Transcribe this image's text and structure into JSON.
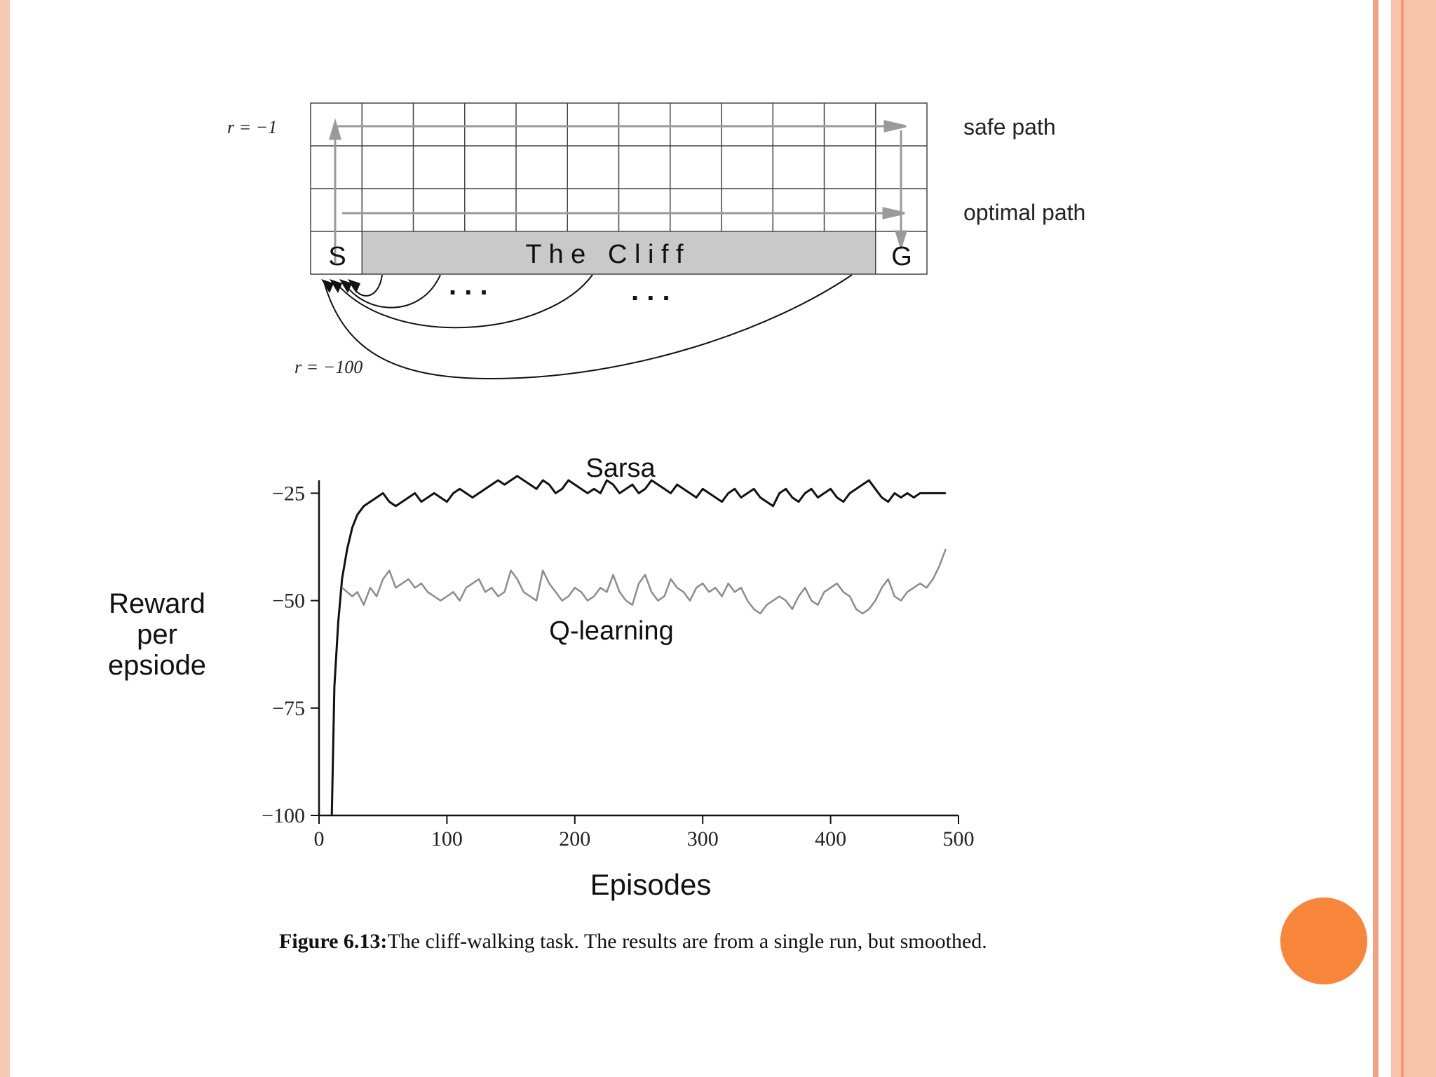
{
  "colors": {
    "accent": "#f7863a",
    "border_light": "#f8c3a8",
    "border_dark": "#f39a74",
    "cliff_fill": "#c9c9c9",
    "sarsa_line": "#111111",
    "qlearning_line": "#8c8c8c"
  },
  "gridworld": {
    "label_r_step": "r = −1",
    "label_r_cliff": "r = −100",
    "start_label": "S",
    "goal_label": "G",
    "cliff_label": "T h e   C l i f f",
    "safe_path_label": "safe path",
    "optimal_path_label": "optimal path",
    "dots_left": ". . .",
    "dots_right": ". . ."
  },
  "chart_data": {
    "type": "line",
    "title": "",
    "xlabel": "Episodes",
    "ylabel": "Reward per epsiode",
    "ylabel_lines": [
      "Reward",
      "per",
      "epsiode"
    ],
    "xlim": [
      0,
      500
    ],
    "ylim": [
      -100,
      -20
    ],
    "xticks": [
      0,
      100,
      200,
      300,
      400,
      500
    ],
    "yticks": [
      -25,
      -50,
      -75,
      -100
    ],
    "xtick_labels": [
      "0",
      "100",
      "200",
      "300",
      "400",
      "500"
    ],
    "ytick_labels": [
      "−25",
      "−50",
      "−75",
      "−100"
    ],
    "grid": false,
    "series": [
      {
        "name": "Sarsa",
        "color": "#111111",
        "x": [
          10,
          12,
          15,
          18,
          22,
          26,
          30,
          35,
          40,
          45,
          50,
          55,
          60,
          65,
          70,
          75,
          80,
          85,
          90,
          95,
          100,
          105,
          110,
          115,
          120,
          125,
          130,
          135,
          140,
          145,
          150,
          155,
          160,
          165,
          170,
          175,
          180,
          185,
          190,
          195,
          200,
          205,
          210,
          215,
          220,
          225,
          230,
          235,
          240,
          245,
          250,
          255,
          260,
          265,
          270,
          275,
          280,
          285,
          290,
          295,
          300,
          305,
          310,
          315,
          320,
          325,
          330,
          335,
          340,
          345,
          350,
          355,
          360,
          365,
          370,
          375,
          380,
          385,
          390,
          395,
          400,
          405,
          410,
          415,
          420,
          425,
          430,
          435,
          440,
          445,
          450,
          455,
          460,
          465,
          470,
          475,
          480,
          485,
          490
        ],
        "values": [
          -100,
          -70,
          -55,
          -45,
          -38,
          -33,
          -30,
          -28,
          -27,
          -26,
          -25,
          -27,
          -28,
          -27,
          -26,
          -25,
          -27,
          -26,
          -25,
          -26,
          -27,
          -25,
          -24,
          -25,
          -26,
          -25,
          -24,
          -23,
          -22,
          -23,
          -22,
          -21,
          -22,
          -23,
          -24,
          -22,
          -23,
          -25,
          -24,
          -22,
          -23,
          -24,
          -25,
          -24,
          -25,
          -22,
          -23,
          -25,
          -24,
          -23,
          -25,
          -24,
          -22,
          -23,
          -24,
          -25,
          -23,
          -24,
          -25,
          -26,
          -24,
          -25,
          -26,
          -27,
          -25,
          -24,
          -26,
          -25,
          -24,
          -26,
          -27,
          -28,
          -25,
          -24,
          -26,
          -27,
          -25,
          -24,
          -26,
          -25,
          -24,
          -26,
          -27,
          -25,
          -24,
          -23,
          -22,
          -24,
          -26,
          -27,
          -25,
          -26,
          -25,
          -26,
          -25,
          -25,
          -25,
          -25,
          -25
        ]
      },
      {
        "name": "Q-learning",
        "color": "#8c8c8c",
        "x": [
          18,
          22,
          26,
          30,
          35,
          40,
          45,
          50,
          55,
          60,
          65,
          70,
          75,
          80,
          85,
          90,
          95,
          100,
          105,
          110,
          115,
          120,
          125,
          130,
          135,
          140,
          145,
          150,
          155,
          160,
          165,
          170,
          175,
          180,
          185,
          190,
          195,
          200,
          205,
          210,
          215,
          220,
          225,
          230,
          235,
          240,
          245,
          250,
          255,
          260,
          265,
          270,
          275,
          280,
          285,
          290,
          295,
          300,
          305,
          310,
          315,
          320,
          325,
          330,
          335,
          340,
          345,
          350,
          355,
          360,
          365,
          370,
          375,
          380,
          385,
          390,
          395,
          400,
          405,
          410,
          415,
          420,
          425,
          430,
          435,
          440,
          445,
          450,
          455,
          460,
          465,
          470,
          475,
          480,
          485,
          490
        ],
        "values": [
          -47,
          -48,
          -49,
          -48,
          -51,
          -47,
          -49,
          -45,
          -43,
          -47,
          -46,
          -45,
          -47,
          -46,
          -48,
          -49,
          -50,
          -49,
          -48,
          -50,
          -47,
          -46,
          -45,
          -48,
          -47,
          -49,
          -48,
          -43,
          -45,
          -48,
          -49,
          -50,
          -43,
          -46,
          -48,
          -50,
          -49,
          -47,
          -48,
          -50,
          -49,
          -47,
          -48,
          -44,
          -48,
          -50,
          -51,
          -46,
          -44,
          -48,
          -50,
          -49,
          -45,
          -47,
          -48,
          -50,
          -47,
          -46,
          -48,
          -47,
          -49,
          -46,
          -48,
          -47,
          -50,
          -52,
          -53,
          -51,
          -50,
          -49,
          -50,
          -52,
          -49,
          -47,
          -50,
          -51,
          -48,
          -47,
          -46,
          -48,
          -49,
          -52,
          -53,
          -52,
          -50,
          -47,
          -45,
          -49,
          -50,
          -48,
          -47,
          -46,
          -47,
          -45,
          -42,
          -38
        ]
      }
    ]
  },
  "caption": {
    "label": "Figure 6.13:",
    "text": "The cliff-walking task. The results are from a single run, but smoothed."
  }
}
